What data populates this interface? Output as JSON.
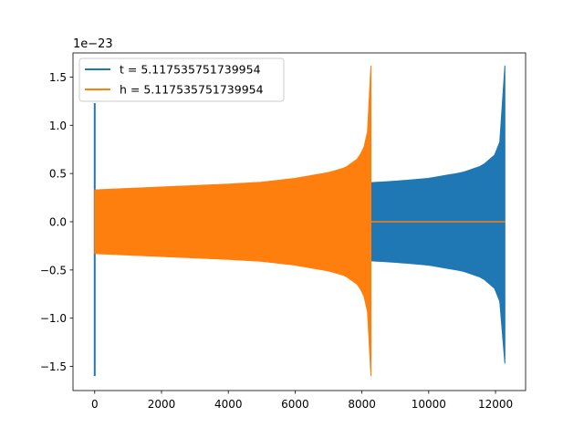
{
  "chart_data": {
    "type": "line",
    "title": "",
    "xlabel": "",
    "ylabel": "",
    "y_offset_label": "1e−23",
    "xlim": [
      -650,
      12900
    ],
    "ylim": [
      -1.75,
      1.75
    ],
    "xticks": [
      0,
      2000,
      4000,
      6000,
      8000,
      10000,
      12000
    ],
    "yticks": [
      -1.5,
      -1.0,
      -0.5,
      0.0,
      0.5,
      1.0,
      1.5
    ],
    "xtick_labels": [
      "0",
      "2000",
      "4000",
      "6000",
      "8000",
      "10000",
      "12000"
    ],
    "ytick_labels": [
      "−1.5",
      "−1.0",
      "−0.5",
      "0.0",
      "0.5",
      "1.0",
      "1.5"
    ],
    "grid": false,
    "legend_position": "top-left",
    "series": [
      {
        "name": "t = 5.117535751739954",
        "color": "#1f77b4",
        "x_range": [
          0,
          12280
        ],
        "initial_spike": {
          "x": 0,
          "min": -1.6,
          "max": 1.23
        },
        "envelope": [
          {
            "x": 0,
            "amp": 0.33
          },
          {
            "x": 2000,
            "amp": 0.34
          },
          {
            "x": 4000,
            "amp": 0.355
          },
          {
            "x": 6000,
            "amp": 0.375
          },
          {
            "x": 8000,
            "amp": 0.4
          },
          {
            "x": 9000,
            "amp": 0.42
          },
          {
            "x": 10000,
            "amp": 0.45
          },
          {
            "x": 11000,
            "amp": 0.51
          },
          {
            "x": 11600,
            "amp": 0.58
          },
          {
            "x": 12000,
            "amp": 0.7
          },
          {
            "x": 12150,
            "amp": 0.85
          },
          {
            "x": 12230,
            "amp": 1.05
          },
          {
            "x": 12260,
            "amp": 1.25
          },
          {
            "x": 12280,
            "amp": 1.62
          }
        ],
        "final_min": -1.47
      },
      {
        "name": "h = 5.117535751739954",
        "color": "#ff7f0e",
        "x_range": [
          0,
          8270
        ],
        "envelope": [
          {
            "x": 0,
            "amp": 0.33
          },
          {
            "x": 2000,
            "amp": 0.36
          },
          {
            "x": 4000,
            "amp": 0.39
          },
          {
            "x": 5000,
            "amp": 0.41
          },
          {
            "x": 6000,
            "amp": 0.45
          },
          {
            "x": 7000,
            "amp": 0.51
          },
          {
            "x": 7500,
            "amp": 0.56
          },
          {
            "x": 7900,
            "amp": 0.66
          },
          {
            "x": 8100,
            "amp": 0.8
          },
          {
            "x": 8200,
            "amp": 1.0
          },
          {
            "x": 8250,
            "amp": 1.3
          },
          {
            "x": 8270,
            "amp": 1.62
          }
        ],
        "final_min": -1.6,
        "flat_after": {
          "x_from": 8270,
          "x_to": 12280,
          "value": 0.0
        }
      }
    ]
  }
}
